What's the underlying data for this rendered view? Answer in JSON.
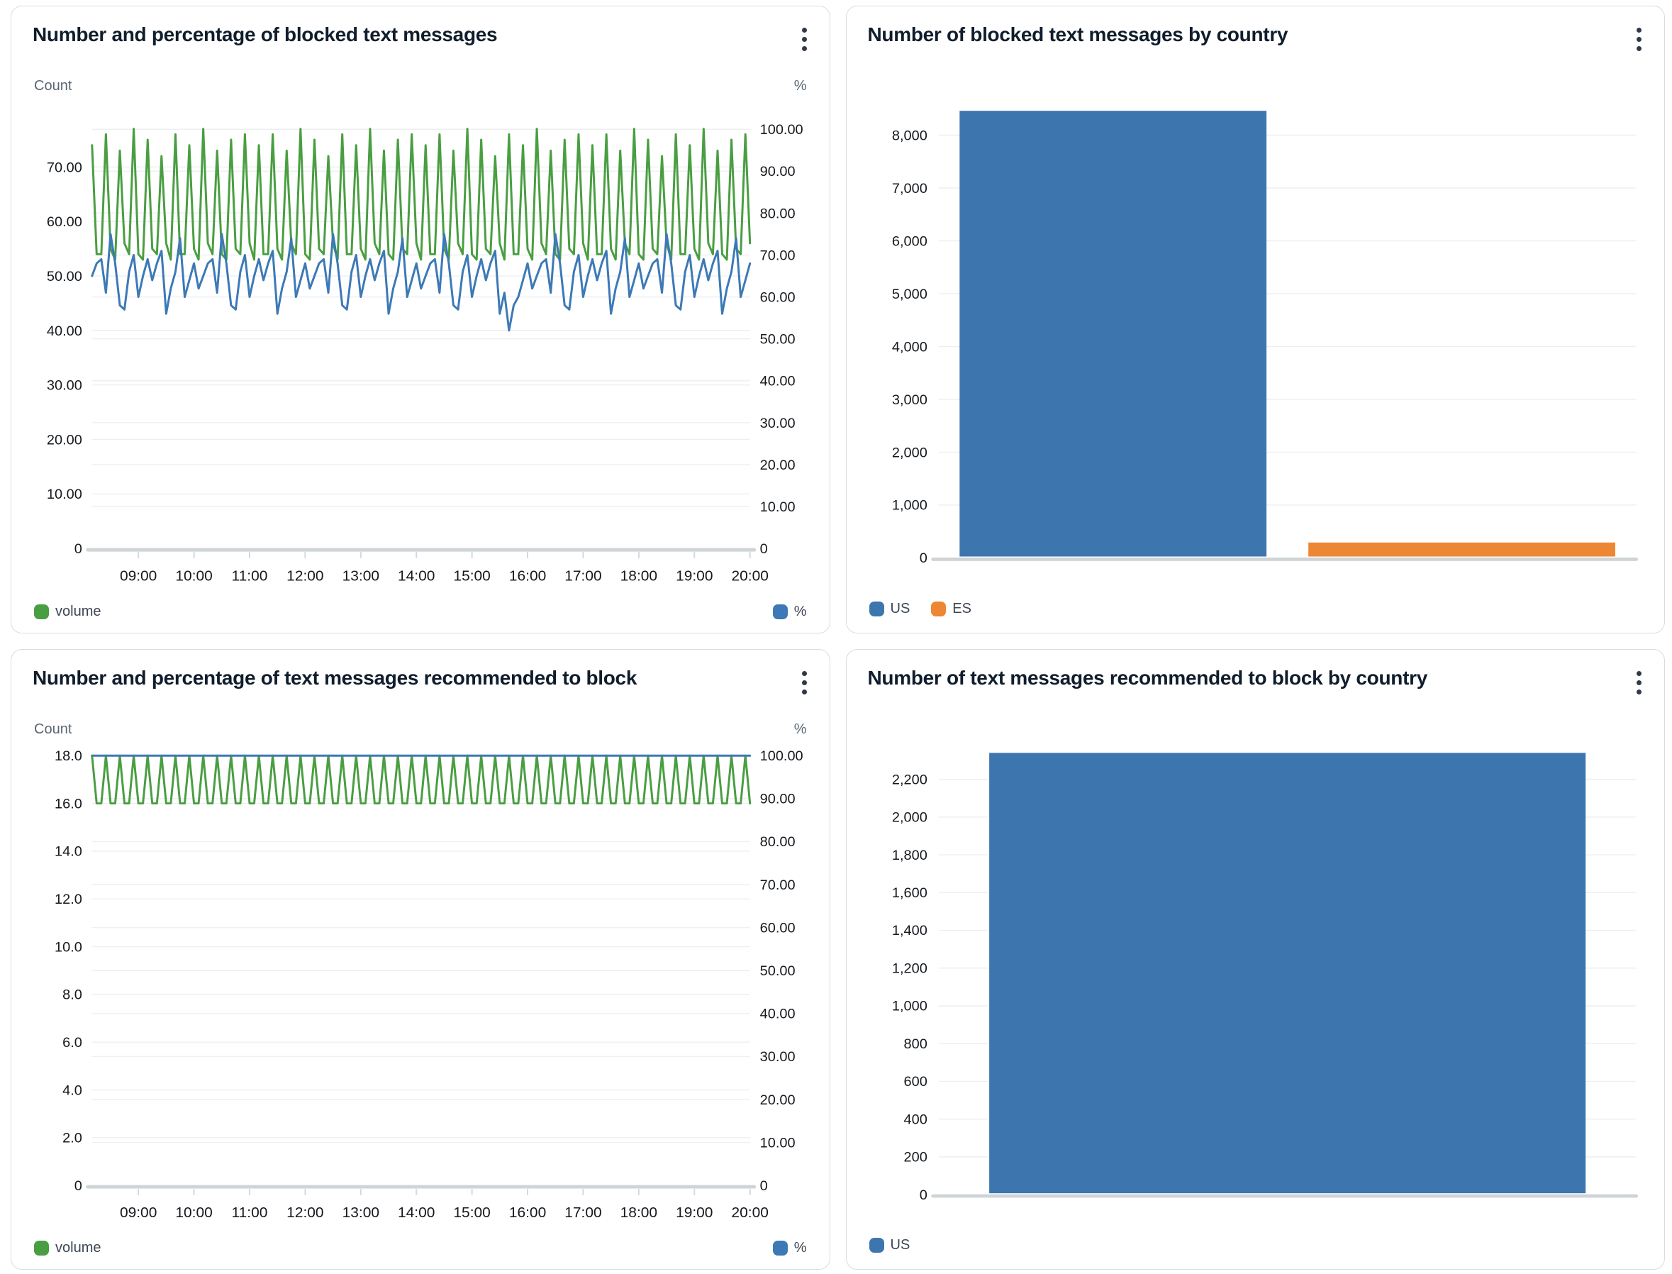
{
  "icons": {
    "panel_menu": "kebab-vertical-dots"
  },
  "page": {
    "background": "#ffffff",
    "panel_border": "#d9dcde"
  },
  "chart_data": [
    {
      "type": "line",
      "title": "Number and percentage of blocked text messages",
      "x_axis": {
        "start": "08:10",
        "interval_minutes": 5,
        "tick_labels": [
          "09:00",
          "10:00",
          "11:00",
          "12:00",
          "13:00",
          "14:00",
          "15:00",
          "16:00",
          "17:00",
          "18:00",
          "19:00",
          "20:00"
        ],
        "tick_indices": [
          10,
          22,
          34,
          46,
          58,
          70,
          82,
          94,
          106,
          118,
          130,
          142
        ]
      },
      "left_axis": {
        "label": "Count",
        "range": [
          0,
          80
        ],
        "tick_values": [
          70,
          60,
          50,
          40,
          30,
          20,
          10,
          0
        ],
        "tick_labels": [
          "70.00",
          "60.00",
          "50.00",
          "40.00",
          "30.00",
          "20.00",
          "10.00",
          "0"
        ]
      },
      "right_axis": {
        "label": "%",
        "range": [
          0,
          104
        ],
        "tick_values": [
          100,
          90,
          80,
          70,
          60,
          50,
          40,
          30,
          20,
          10,
          0
        ],
        "tick_labels": [
          "100.00",
          "90.00",
          "80.00",
          "70.00",
          "60.00",
          "50.00",
          "40.00",
          "30.00",
          "20.00",
          "10.00",
          "0"
        ]
      },
      "series": [
        {
          "name": "volume",
          "axis": "left",
          "color": "#4a9e42",
          "values": [
            74,
            54,
            54,
            76,
            55,
            53,
            73,
            56,
            54,
            77,
            54,
            53,
            75,
            55,
            54,
            72,
            56,
            53,
            76,
            54,
            54,
            74,
            55,
            53,
            77,
            56,
            54,
            73,
            54,
            53,
            75,
            55,
            54,
            76,
            56,
            53,
            74,
            54,
            54,
            76,
            55,
            53,
            73,
            56,
            54,
            77,
            54,
            53,
            75,
            55,
            54,
            72,
            56,
            53,
            76,
            54,
            54,
            74,
            55,
            53,
            77,
            56,
            54,
            73,
            54,
            53,
            75,
            55,
            54,
            76,
            56,
            53,
            74,
            54,
            54,
            76,
            55,
            53,
            73,
            56,
            54,
            77,
            54,
            53,
            75,
            55,
            54,
            72,
            56,
            53,
            76,
            54,
            54,
            74,
            55,
            53,
            77,
            56,
            54,
            73,
            54,
            53,
            75,
            55,
            54,
            76,
            56,
            53,
            74,
            54,
            54,
            76,
            55,
            53,
            73,
            56,
            54,
            77,
            54,
            53,
            75,
            55,
            54,
            72,
            56,
            53,
            76,
            54,
            54,
            74,
            55,
            53,
            77,
            56,
            54,
            73,
            54,
            53,
            75,
            55,
            54,
            76,
            56
          ]
        },
        {
          "name": "%",
          "axis": "right",
          "color": "#3c79b6",
          "values": [
            65,
            68,
            69,
            61,
            75,
            68,
            58,
            57,
            66,
            70,
            60,
            65,
            69,
            64,
            68,
            71,
            56,
            62,
            66,
            74,
            60,
            64,
            68,
            62,
            65,
            68,
            69,
            61,
            75,
            68,
            58,
            57,
            66,
            70,
            60,
            65,
            69,
            64,
            68,
            71,
            56,
            62,
            66,
            74,
            60,
            64,
            68,
            62,
            65,
            68,
            69,
            61,
            75,
            68,
            58,
            57,
            66,
            70,
            60,
            65,
            69,
            64,
            68,
            71,
            56,
            62,
            66,
            74,
            60,
            64,
            68,
            62,
            65,
            68,
            69,
            61,
            75,
            68,
            58,
            57,
            66,
            70,
            60,
            65,
            69,
            64,
            68,
            71,
            56,
            61,
            52,
            58,
            60,
            64,
            68,
            62,
            65,
            68,
            69,
            61,
            75,
            68,
            58,
            57,
            66,
            70,
            60,
            65,
            69,
            64,
            68,
            71,
            56,
            62,
            66,
            74,
            60,
            64,
            68,
            62,
            65,
            68,
            69,
            61,
            75,
            68,
            58,
            57,
            66,
            70,
            60,
            65,
            69,
            64,
            68,
            71,
            56,
            62,
            66,
            74,
            60,
            64,
            68
          ]
        }
      ]
    },
    {
      "type": "bar",
      "title": "Number of blocked text messages by country",
      "categories": [
        "US",
        "ES"
      ],
      "values": [
        8460,
        290
      ],
      "bar_width_frac": 0.88,
      "y_axis": {
        "range": [
          0,
          8800
        ],
        "tick_values": [
          8000,
          7000,
          6000,
          5000,
          4000,
          3000,
          2000,
          1000,
          0
        ],
        "tick_labels": [
          "8,000",
          "7,000",
          "6,000",
          "5,000",
          "4,000",
          "3,000",
          "2,000",
          "1,000",
          "0"
        ]
      },
      "legend": [
        {
          "name": "US",
          "color": "#3d76af"
        },
        {
          "name": "ES",
          "color": "#ed8733"
        }
      ]
    },
    {
      "type": "line",
      "title": "Number and percentage of text messages recommended to block",
      "x_axis": {
        "start": "08:10",
        "interval_minutes": 5,
        "tick_labels": [
          "09:00",
          "10:00",
          "11:00",
          "12:00",
          "13:00",
          "14:00",
          "15:00",
          "16:00",
          "17:00",
          "18:00",
          "19:00",
          "20:00"
        ],
        "tick_indices": [
          10,
          22,
          34,
          46,
          58,
          70,
          82,
          94,
          106,
          118,
          130,
          142
        ]
      },
      "left_axis": {
        "label": "Count",
        "range": [
          0,
          18
        ],
        "tick_values": [
          18,
          16,
          14,
          12,
          10,
          8,
          6,
          4,
          2,
          0
        ],
        "tick_labels": [
          "18.0",
          "16.0",
          "14.0",
          "12.0",
          "10.0",
          "8.0",
          "6.0",
          "4.0",
          "2.0",
          "0"
        ]
      },
      "right_axis": {
        "label": "%",
        "range": [
          0,
          100
        ],
        "tick_values": [
          100,
          90,
          80,
          70,
          60,
          50,
          40,
          30,
          20,
          10,
          0
        ],
        "tick_labels": [
          "100.00",
          "90.00",
          "80.00",
          "70.00",
          "60.00",
          "50.00",
          "40.00",
          "30.00",
          "20.00",
          "10.00",
          "0"
        ]
      },
      "series": [
        {
          "name": "volume",
          "axis": "left",
          "color": "#4a9e42",
          "values": [
            18,
            16,
            16,
            18,
            16,
            16,
            18,
            16,
            16,
            18,
            16,
            16,
            18,
            16,
            16,
            18,
            16,
            16,
            18,
            16,
            16,
            18,
            16,
            16,
            18,
            16,
            16,
            18,
            16,
            16,
            18,
            16,
            16,
            18,
            16,
            16,
            18,
            16,
            16,
            18,
            16,
            16,
            18,
            16,
            16,
            18,
            16,
            16,
            18,
            16,
            16,
            18,
            16,
            16,
            18,
            16,
            16,
            18,
            16,
            16,
            18,
            16,
            16,
            18,
            16,
            16,
            18,
            16,
            16,
            18,
            16,
            16,
            18,
            16,
            16,
            18,
            16,
            16,
            18,
            16,
            16,
            18,
            16,
            16,
            18,
            16,
            16,
            18,
            16,
            16,
            18,
            16,
            16,
            18,
            16,
            16,
            18,
            16,
            16,
            18,
            16,
            16,
            18,
            16,
            16,
            18,
            16,
            16,
            18,
            16,
            16,
            18,
            16,
            16,
            18,
            16,
            16,
            18,
            16,
            16,
            18,
            16,
            16,
            18,
            16,
            16,
            18,
            16,
            16,
            18,
            16,
            16,
            18,
            16,
            16,
            18,
            16,
            16,
            18,
            16,
            16,
            18,
            16
          ]
        },
        {
          "name": "%",
          "axis": "right",
          "color": "#3c79b6",
          "values": [
            100,
            100,
            100,
            100,
            100,
            100,
            100,
            100,
            100,
            100,
            100,
            100,
            100,
            100,
            100,
            100,
            100,
            100,
            100,
            100,
            100,
            100,
            100,
            100,
            100,
            100,
            100,
            100,
            100,
            100,
            100,
            100,
            100,
            100,
            100,
            100,
            100,
            100,
            100,
            100,
            100,
            100,
            100,
            100,
            100,
            100,
            100,
            100,
            100,
            100,
            100,
            100,
            100,
            100,
            100,
            100,
            100,
            100,
            100,
            100,
            100,
            100,
            100,
            100,
            100,
            100,
            100,
            100,
            100,
            100,
            100,
            100,
            100,
            100,
            100,
            100,
            100,
            100,
            100,
            100,
            100,
            100,
            100,
            100,
            100,
            100,
            100,
            100,
            100,
            100,
            100,
            100,
            100,
            100,
            100,
            100,
            100,
            100,
            100,
            100,
            100,
            100,
            100,
            100,
            100,
            100,
            100,
            100,
            100,
            100,
            100,
            100,
            100,
            100,
            100,
            100,
            100,
            100,
            100,
            100,
            100,
            100,
            100,
            100,
            100,
            100,
            100,
            100,
            100,
            100,
            100,
            100,
            100,
            100,
            100,
            100,
            100,
            100,
            100,
            100,
            100,
            100,
            100
          ]
        }
      ]
    },
    {
      "type": "bar",
      "title": "Number of text messages recommended to block by country",
      "categories": [
        "US"
      ],
      "values": [
        2340
      ],
      "bar_width_frac": 0.855,
      "y_axis": {
        "range": [
          0,
          2430
        ],
        "tick_values": [
          2200,
          2000,
          1800,
          1600,
          1400,
          1200,
          1000,
          800,
          600,
          400,
          200,
          0
        ],
        "tick_labels": [
          "2,200",
          "2,000",
          "1,800",
          "1,600",
          "1,400",
          "1,200",
          "1,000",
          "800",
          "600",
          "400",
          "200",
          "0"
        ]
      },
      "legend": [
        {
          "name": "US",
          "color": "#3d76af"
        }
      ]
    }
  ]
}
